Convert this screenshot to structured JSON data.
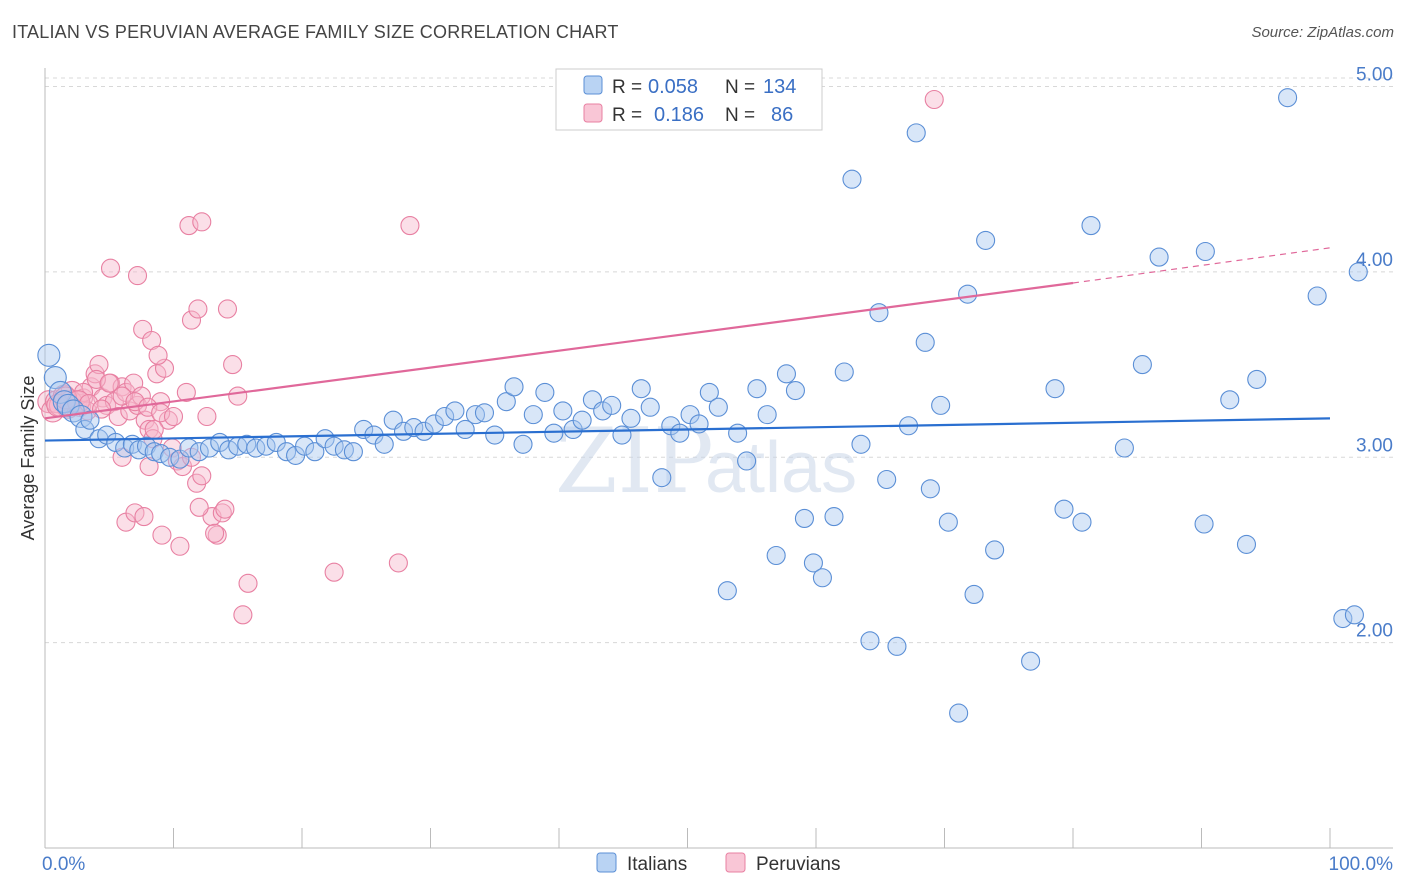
{
  "header": {
    "title": "ITALIAN VS PERUVIAN AVERAGE FAMILY SIZE CORRELATION CHART",
    "source": "Source: ZipAtlas.com"
  },
  "watermark": {
    "zip": "ZIP",
    "atlas": "atlas"
  },
  "colors": {
    "italians_fill": "#a8c8f0",
    "italians_stroke": "#5b8fd6",
    "italians_line": "#2a6fd0",
    "peruvians_fill": "#f7b8cc",
    "peruvians_stroke": "#e880a2",
    "peruvians_line": "#e0689a",
    "grid": "#d8d8d8",
    "axis_text": "#4a7cc9"
  },
  "legend_top": {
    "rows": [
      {
        "r_label": "R =",
        "r_value": "0.058",
        "n_label": "N =",
        "n_value": "134"
      },
      {
        "r_label": "R =",
        "r_value": "0.186",
        "n_label": "N =",
        "n_value": "86"
      }
    ]
  },
  "chart_data": {
    "type": "scatter",
    "title": "ITALIAN VS PERUVIAN AVERAGE FAMILY SIZE CORRELATION CHART",
    "xlabel": "",
    "ylabel": "Average Family Size",
    "xlim": [
      0,
      100
    ],
    "ylim": [
      1.0,
      5.1
    ],
    "x_tick_labels": [
      "0.0%",
      "100.0%"
    ],
    "y_ticks": [
      2.0,
      3.0,
      4.0,
      5.0
    ],
    "y_tick_labels": [
      "2.00",
      "3.00",
      "4.00",
      "5.00"
    ],
    "grid": true,
    "legend_position": "bottom-center",
    "series": [
      {
        "name": "Italians",
        "r": 0.058,
        "n": 134,
        "trend": {
          "x": [
            0,
            100
          ],
          "y": [
            3.09,
            3.21
          ]
        },
        "points": [
          [
            0.3,
            3.55
          ],
          [
            0.8,
            3.43
          ],
          [
            1.2,
            3.35
          ],
          [
            1.5,
            3.3
          ],
          [
            1.8,
            3.28
          ],
          [
            2.2,
            3.25
          ],
          [
            2.8,
            3.22
          ],
          [
            3.1,
            3.15
          ],
          [
            3.5,
            3.2
          ],
          [
            4.2,
            3.1
          ],
          [
            4.8,
            3.12
          ],
          [
            5.5,
            3.08
          ],
          [
            6.2,
            3.05
          ],
          [
            6.8,
            3.07
          ],
          [
            7.3,
            3.04
          ],
          [
            7.9,
            3.06
          ],
          [
            8.5,
            3.03
          ],
          [
            9.0,
            3.02
          ],
          [
            9.7,
            3.0
          ],
          [
            10.5,
            2.99
          ],
          [
            11.2,
            3.05
          ],
          [
            12.0,
            3.03
          ],
          [
            12.8,
            3.05
          ],
          [
            13.6,
            3.08
          ],
          [
            14.3,
            3.04
          ],
          [
            15.0,
            3.06
          ],
          [
            15.7,
            3.07
          ],
          [
            16.4,
            3.05
          ],
          [
            17.2,
            3.06
          ],
          [
            18.0,
            3.08
          ],
          [
            18.8,
            3.03
          ],
          [
            19.5,
            3.01
          ],
          [
            20.2,
            3.06
          ],
          [
            21.0,
            3.03
          ],
          [
            21.8,
            3.1
          ],
          [
            22.5,
            3.06
          ],
          [
            23.3,
            3.04
          ],
          [
            24.0,
            3.03
          ],
          [
            24.8,
            3.15
          ],
          [
            25.6,
            3.12
          ],
          [
            26.4,
            3.07
          ],
          [
            27.1,
            3.2
          ],
          [
            27.9,
            3.14
          ],
          [
            28.7,
            3.16
          ],
          [
            29.5,
            3.14
          ],
          [
            30.3,
            3.18
          ],
          [
            31.1,
            3.22
          ],
          [
            31.9,
            3.25
          ],
          [
            32.7,
            3.15
          ],
          [
            33.5,
            3.23
          ],
          [
            34.2,
            3.24
          ],
          [
            35.0,
            3.12
          ],
          [
            35.9,
            3.3
          ],
          [
            36.5,
            3.38
          ],
          [
            37.2,
            3.07
          ],
          [
            38.0,
            3.23
          ],
          [
            38.9,
            3.35
          ],
          [
            39.6,
            3.13
          ],
          [
            40.3,
            3.25
          ],
          [
            41.1,
            3.15
          ],
          [
            41.8,
            3.2
          ],
          [
            42.6,
            3.31
          ],
          [
            43.4,
            3.25
          ],
          [
            44.1,
            3.28
          ],
          [
            44.9,
            3.12
          ],
          [
            45.6,
            3.21
          ],
          [
            46.4,
            3.37
          ],
          [
            47.1,
            3.27
          ],
          [
            48.0,
            2.89
          ],
          [
            48.7,
            3.17
          ],
          [
            49.4,
            3.13
          ],
          [
            50.2,
            3.23
          ],
          [
            50.9,
            3.18
          ],
          [
            51.7,
            3.35
          ],
          [
            52.4,
            3.27
          ],
          [
            53.1,
            2.28
          ],
          [
            53.9,
            3.13
          ],
          [
            54.6,
            2.98
          ],
          [
            55.4,
            3.37
          ],
          [
            56.2,
            3.23
          ],
          [
            56.9,
            2.47
          ],
          [
            57.7,
            3.45
          ],
          [
            58.4,
            3.36
          ],
          [
            59.1,
            2.67
          ],
          [
            59.8,
            2.43
          ],
          [
            60.5,
            2.35
          ],
          [
            61.4,
            2.68
          ],
          [
            62.2,
            3.46
          ],
          [
            62.8,
            4.5
          ],
          [
            63.5,
            3.07
          ],
          [
            64.2,
            2.01
          ],
          [
            64.9,
            3.78
          ],
          [
            65.5,
            2.88
          ],
          [
            66.3,
            1.98
          ],
          [
            67.2,
            3.17
          ],
          [
            67.8,
            4.75
          ],
          [
            68.5,
            3.62
          ],
          [
            68.9,
            2.83
          ],
          [
            69.7,
            3.28
          ],
          [
            70.3,
            2.65
          ],
          [
            71.1,
            1.62
          ],
          [
            71.8,
            3.88
          ],
          [
            72.3,
            2.26
          ],
          [
            73.2,
            4.17
          ],
          [
            73.9,
            2.5
          ],
          [
            76.7,
            1.9
          ],
          [
            78.6,
            3.37
          ],
          [
            79.3,
            2.72
          ],
          [
            80.7,
            2.65
          ],
          [
            81.4,
            4.25
          ],
          [
            84.0,
            3.05
          ],
          [
            85.4,
            3.5
          ],
          [
            86.7,
            4.08
          ],
          [
            90.3,
            4.11
          ],
          [
            90.2,
            2.64
          ],
          [
            92.2,
            3.31
          ],
          [
            93.5,
            2.53
          ],
          [
            94.3,
            3.42
          ],
          [
            96.7,
            4.94
          ],
          [
            99.0,
            3.87
          ],
          [
            101.0,
            2.13
          ],
          [
            101.9,
            2.15
          ],
          [
            102.2,
            4.0
          ]
        ]
      },
      {
        "name": "Peruvians",
        "r": 0.186,
        "n": 86,
        "trend": {
          "x": [
            0,
            80
          ],
          "y": [
            3.21,
            3.94
          ]
        },
        "trend_dashed": {
          "x": [
            80,
            100
          ],
          "y": [
            3.94,
            4.13
          ]
        },
        "points": [
          [
            0.3,
            3.3
          ],
          [
            0.6,
            3.25
          ],
          [
            0.9,
            3.3
          ],
          [
            1.2,
            3.28
          ],
          [
            1.5,
            3.33
          ],
          [
            1.8,
            3.27
          ],
          [
            2.1,
            3.35
          ],
          [
            2.4,
            3.3
          ],
          [
            2.7,
            3.28
          ],
          [
            3.0,
            3.32
          ],
          [
            3.3,
            3.25
          ],
          [
            3.6,
            3.38
          ],
          [
            3.9,
            3.45
          ],
          [
            4.2,
            3.5
          ],
          [
            4.5,
            3.32
          ],
          [
            4.8,
            3.28
          ],
          [
            5.1,
            3.4
          ],
          [
            5.4,
            3.3
          ],
          [
            5.7,
            3.22
          ],
          [
            6.0,
            3.38
          ],
          [
            6.3,
            3.35
          ],
          [
            6.6,
            3.25
          ],
          [
            6.9,
            3.4
          ],
          [
            7.2,
            3.28
          ],
          [
            7.5,
            3.33
          ],
          [
            7.8,
            3.2
          ],
          [
            8.1,
            3.15
          ],
          [
            8.4,
            3.1
          ],
          [
            8.7,
            3.45
          ],
          [
            9.0,
            3.3
          ],
          [
            9.3,
            3.48
          ],
          [
            9.6,
            3.2
          ],
          [
            9.9,
            3.05
          ],
          [
            10.3,
            2.98
          ],
          [
            10.7,
            2.95
          ],
          [
            11.0,
            3.35
          ],
          [
            11.4,
            3.0
          ],
          [
            11.8,
            2.86
          ],
          [
            12.2,
            2.9
          ],
          [
            12.6,
            3.22
          ],
          [
            13.0,
            2.68
          ],
          [
            13.4,
            2.58
          ],
          [
            13.8,
            2.7
          ],
          [
            14.2,
            3.8
          ],
          [
            14.6,
            3.5
          ],
          [
            15.0,
            3.33
          ],
          [
            15.8,
            2.32
          ],
          [
            15.4,
            2.15
          ],
          [
            5.1,
            4.02
          ],
          [
            7.2,
            3.98
          ],
          [
            7.6,
            3.69
          ],
          [
            8.3,
            3.63
          ],
          [
            8.8,
            3.55
          ],
          [
            11.4,
            3.74
          ],
          [
            11.9,
            3.8
          ],
          [
            11.2,
            4.25
          ],
          [
            12.2,
            4.27
          ],
          [
            6.0,
            3.0
          ],
          [
            6.3,
            2.65
          ],
          [
            7.0,
            2.7
          ],
          [
            7.7,
            2.68
          ],
          [
            8.1,
            2.95
          ],
          [
            8.5,
            3.15
          ],
          [
            9.1,
            2.58
          ],
          [
            10.5,
            2.52
          ],
          [
            12.0,
            2.73
          ],
          [
            14.0,
            2.72
          ],
          [
            13.2,
            2.59
          ],
          [
            22.5,
            2.38
          ],
          [
            27.5,
            2.43
          ],
          [
            28.4,
            4.25
          ],
          [
            69.2,
            4.93
          ],
          [
            2.0,
            3.3
          ],
          [
            3.0,
            3.35
          ],
          [
            4.0,
            3.42
          ],
          [
            5.0,
            3.4
          ],
          [
            6.0,
            3.33
          ],
          [
            7.0,
            3.3
          ],
          [
            8.0,
            3.27
          ],
          [
            9.0,
            3.24
          ],
          [
            10.0,
            3.22
          ],
          [
            1.0,
            3.28
          ],
          [
            1.6,
            3.32
          ],
          [
            2.6,
            3.3
          ],
          [
            3.4,
            3.29
          ],
          [
            4.4,
            3.26
          ]
        ]
      }
    ]
  },
  "legend_bottom": {
    "items": [
      {
        "label": "Italians"
      },
      {
        "label": "Peruvians"
      }
    ]
  }
}
